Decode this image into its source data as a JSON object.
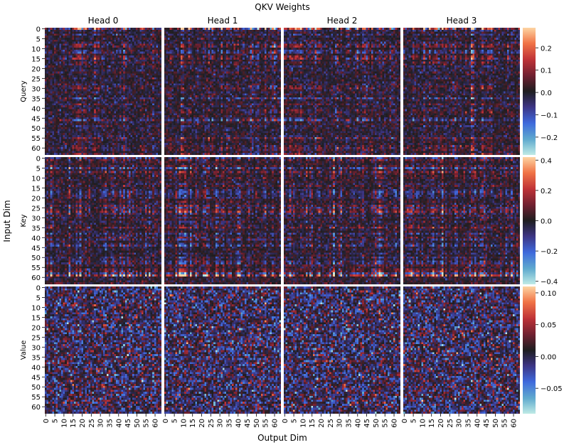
{
  "chart_data": {
    "type": "heatmap",
    "title": "QKV Weights",
    "xlabel": "Output Dim",
    "ylabel": "Input Dim",
    "heads": [
      "Head 0",
      "Head 1",
      "Head 2",
      "Head 3"
    ],
    "rows": [
      {
        "label": "Query",
        "vmin": -0.28,
        "vmax": 0.29,
        "ticks": [
          0.2,
          0.1,
          0.0,
          -0.1,
          -0.2
        ],
        "tick_labels": [
          "0.2",
          "0.1",
          "0.0",
          "−0.1",
          "−0.2"
        ]
      },
      {
        "label": "Key",
        "vmin": -0.42,
        "vmax": 0.42,
        "ticks": [
          0.4,
          0.2,
          0.0,
          -0.2,
          -0.4
        ],
        "tick_labels": [
          "0.4",
          "0.2",
          "0.0",
          "−0.2",
          "−0.4"
        ]
      },
      {
        "label": "Value",
        "vmin": -0.09,
        "vmax": 0.11,
        "ticks": [
          0.1,
          0.05,
          0.0,
          -0.05
        ],
        "tick_labels": [
          "0.10",
          "0.05",
          "0.00",
          "−0.05"
        ]
      }
    ],
    "y_ticks": [
      "0",
      "5",
      "10",
      "15",
      "20",
      "25",
      "30",
      "35",
      "40",
      "45",
      "50",
      "55",
      "60"
    ],
    "x_ticks": [
      "0",
      "5",
      "10",
      "15",
      "20",
      "25",
      "30",
      "35",
      "40",
      "45",
      "50",
      "55",
      "60"
    ],
    "cells_per_block": 64,
    "colormap": "icefire"
  }
}
